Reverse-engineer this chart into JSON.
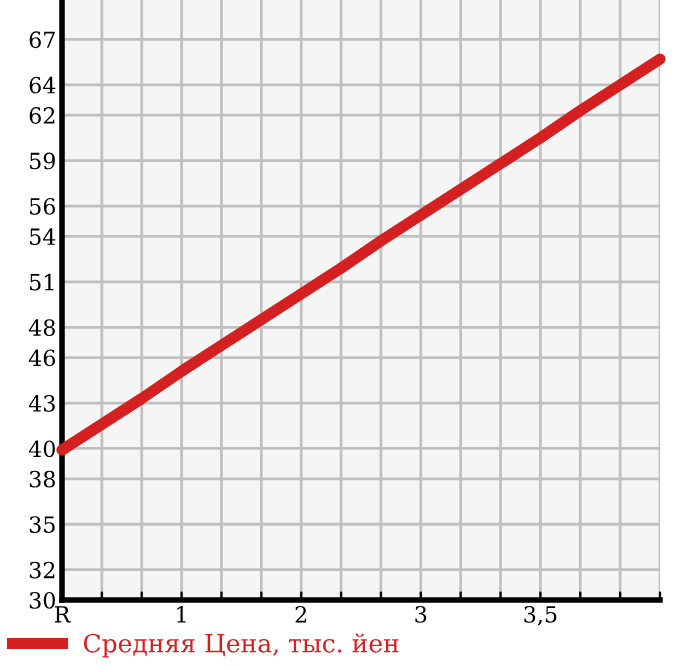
{
  "chart_data": {
    "type": "line",
    "categories": [
      "R",
      null,
      null,
      "1",
      null,
      null,
      "2",
      null,
      null,
      "3",
      null,
      null,
      "3,5",
      null,
      null,
      null
    ],
    "series": [
      {
        "name": "Средняя Цена, тыс. йен",
        "color": "#d42020",
        "values": [
          39.9,
          41.6,
          43.3,
          45.1,
          46.8,
          48.5,
          50.2,
          51.9,
          53.7,
          55.4,
          57.1,
          58.8,
          60.5,
          62.3,
          64.0,
          65.7
        ]
      }
    ],
    "ylim": [
      30,
      69.6
    ],
    "yticks": [
      30,
      32,
      35,
      38,
      40,
      43,
      46,
      48,
      51,
      54,
      56,
      59,
      62,
      64,
      67
    ],
    "grid": true,
    "legend": "bottom",
    "marker": "none",
    "line_style": "solid"
  }
}
